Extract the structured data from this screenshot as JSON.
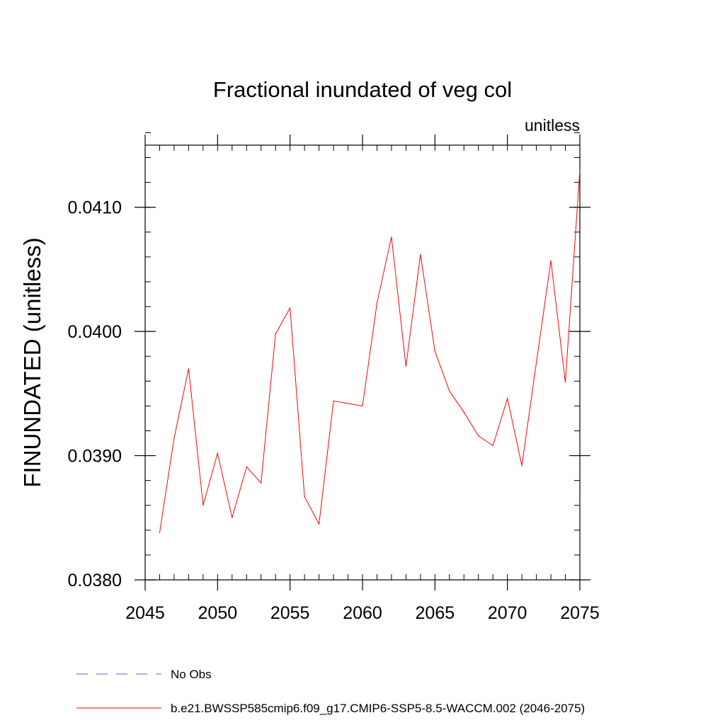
{
  "chart_data": {
    "type": "line",
    "title": "Fractional inundated of veg col",
    "units_label": "unitless",
    "ylabel": "FINUNDATED  (unitless)",
    "xlabel": "",
    "xlim": [
      2045,
      2075
    ],
    "ylim": [
      0.038,
      0.0415
    ],
    "x_ticks": [
      2045,
      2050,
      2055,
      2060,
      2065,
      2070,
      2075
    ],
    "x_tick_labels": [
      "2045",
      "2050",
      "2055",
      "2060",
      "2065",
      "2070",
      "2075"
    ],
    "y_ticks": [
      0.038,
      0.039,
      0.04,
      0.041
    ],
    "y_tick_labels": [
      "0.0380",
      "0.0390",
      "0.0400",
      "0.0410"
    ],
    "y_minor_step": 0.0002,
    "x_minor_step": 1,
    "grid": false,
    "series": [
      {
        "name": "b.e21.BWSSP585cmip6.f09_g17.CMIP6-SSP5-8.5-WACCM.002 (2046-2075)",
        "color": "#ff0000",
        "style": "solid",
        "x": [
          2046,
          2047,
          2048,
          2049,
          2050,
          2051,
          2052,
          2053,
          2054,
          2055,
          2056,
          2057,
          2058,
          2059,
          2060,
          2061,
          2062,
          2063,
          2064,
          2065,
          2066,
          2067,
          2068,
          2069,
          2070,
          2071,
          2072,
          2073,
          2074,
          2075
        ],
        "y": [
          0.03838,
          0.03914,
          0.0397,
          0.0386,
          0.03902,
          0.0385,
          0.03891,
          0.03878,
          0.03998,
          0.04019,
          0.03867,
          0.03845,
          0.03944,
          0.03942,
          0.0394,
          0.04023,
          0.04076,
          0.03972,
          0.04062,
          0.03984,
          0.03952,
          0.03935,
          0.03916,
          0.03908,
          0.03946,
          0.03892,
          0.03975,
          0.04057,
          0.03959,
          0.0413
        ]
      }
    ],
    "legend": [
      {
        "label": "No Obs",
        "color": "#6a5acd",
        "style": "dashed"
      },
      {
        "label": "b.e21.BWSSP585cmip6.f09_g17.CMIP6-SSP5-8.5-WACCM.002 (2046-2075)",
        "color": "#ff0000",
        "style": "solid"
      }
    ],
    "legend_position": "bottom-left"
  }
}
